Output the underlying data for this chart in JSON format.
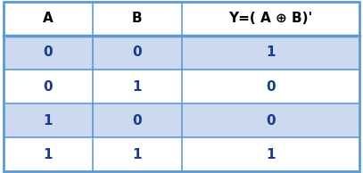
{
  "headers": [
    "A",
    "B",
    "Y=( A ⊕ B)'"
  ],
  "rows": [
    [
      "0",
      "0",
      "1"
    ],
    [
      "0",
      "1",
      "0"
    ],
    [
      "1",
      "0",
      "0"
    ],
    [
      "1",
      "1",
      "1"
    ]
  ],
  "header_bg": "#ffffff",
  "header_text_color": "#000000",
  "row_bg_odd": "#ccd9f0",
  "row_bg_even": "#ffffff",
  "data_text_color": "#1a3a8a",
  "border_color": "#5b9bd5",
  "header_fontsize": 11,
  "data_fontsize": 11,
  "figure_bg": "#ffffff",
  "col_weights": [
    1,
    1,
    2
  ],
  "outer_border_lw": 2.0,
  "inner_border_lw": 1.2,
  "thick_line_lw": 2.5
}
